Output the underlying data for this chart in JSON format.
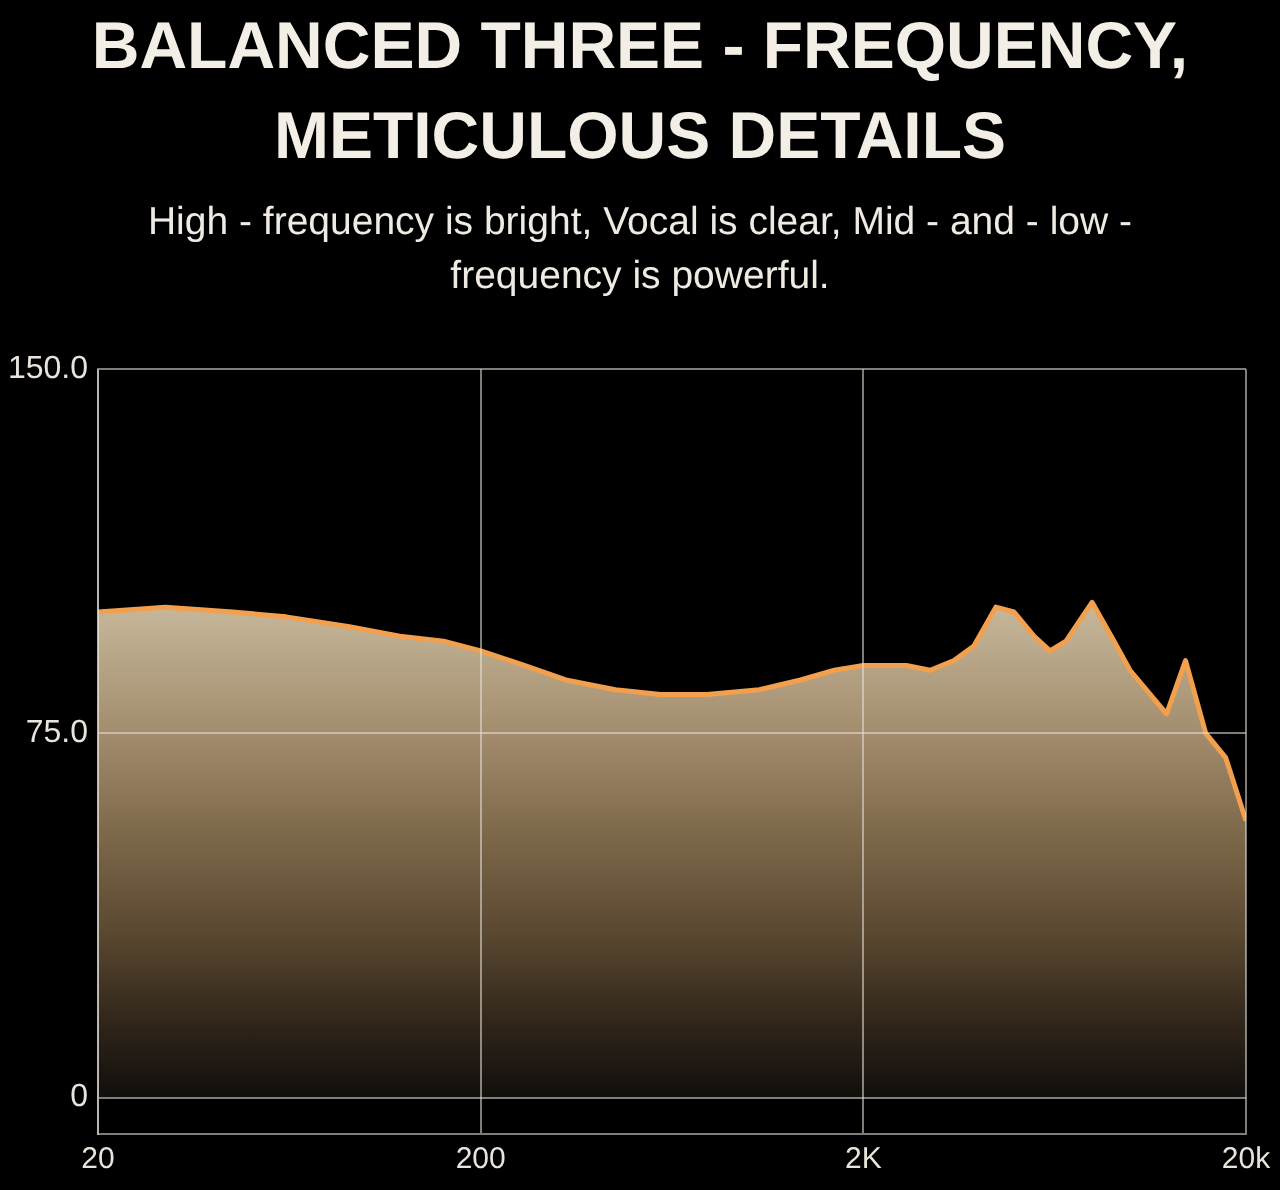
{
  "chart_data": {
    "type": "area",
    "title": "BALANCED THREE - FREQUENCY, METICULOUS DETAILS",
    "subtitle": "High - frequency is bright, Vocal is clear, Mid - and - low - frequency is powerful.",
    "x": [
      20,
      30,
      45,
      62,
      90,
      123,
      160,
      200,
      260,
      334,
      450,
      590,
      780,
      1070,
      1370,
      1680,
      2000,
      2590,
      2990,
      3450,
      3890,
      4440,
      4950,
      5590,
      6150,
      6770,
      7920,
      9040,
      9950,
      12400,
      13900,
      15700,
      17700,
      20000
    ],
    "values": [
      100,
      101,
      100,
      99,
      97,
      95,
      94,
      92,
      89,
      86,
      84,
      83,
      83,
      84,
      86,
      88,
      89,
      89,
      88,
      90,
      93,
      101,
      100,
      95,
      92,
      94,
      102,
      94,
      88,
      79,
      90,
      75,
      70,
      57
    ],
    "color": "#f2a04e",
    "log": "x",
    "xlim": [
      20,
      20000
    ],
    "xticks": [
      20,
      200,
      {
        "value": 2000,
        "label": "2K"
      },
      {
        "value": 20000,
        "label": "20k"
      }
    ],
    "ylim": [
      -7.5,
      150
    ],
    "yticks": [
      0,
      {
        "value": 75,
        "label": "75.0"
      },
      {
        "value": 150,
        "label": "150.0"
      }
    ],
    "grid": true
  }
}
